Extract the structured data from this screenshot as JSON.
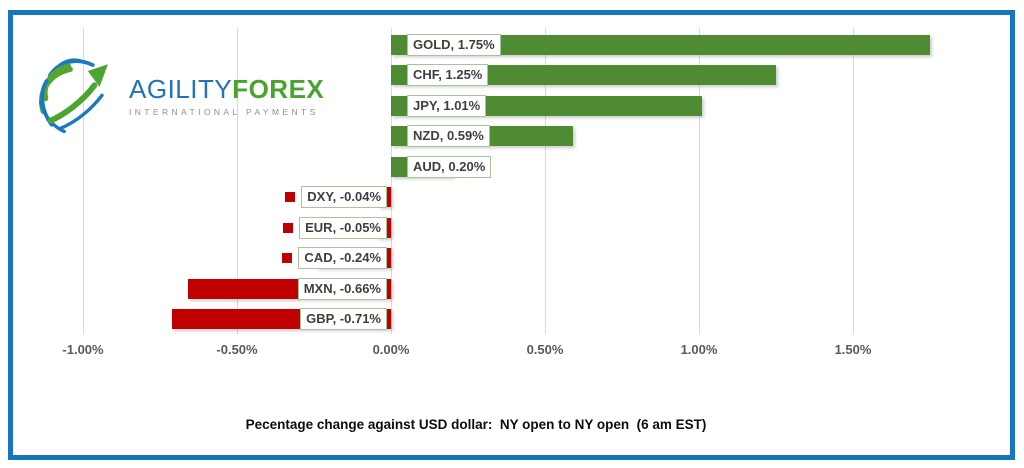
{
  "logo": {
    "brand_part1": "AGILITY",
    "brand_part2": "FOREX",
    "tagline": "INTERNATIONAL PAYMENTS",
    "colors": {
      "blue": "#2173b9",
      "green": "#4aa32e",
      "tagline_gray": "#8f8f8f"
    }
  },
  "frame": {
    "border_color": "#1777bd"
  },
  "chart_data": {
    "type": "bar",
    "orientation": "horizontal",
    "title": "Pecentage change against USD dollar:  NY open to NY open  (6 am EST)",
    "categories": [
      "GOLD",
      "CHF",
      "JPY",
      "NZD",
      "AUD",
      "DXY",
      "EUR",
      "CAD",
      "MXN",
      "GBP"
    ],
    "values": [
      1.75,
      1.25,
      1.01,
      0.59,
      0.2,
      -0.04,
      -0.05,
      -0.24,
      -0.66,
      -0.71
    ],
    "labels": [
      "GOLD, 1.75%",
      "CHF, 1.25%",
      "JPY, 1.01%",
      "NZD, 0.59%",
      "AUD, 0.20%",
      "DXY, -0.04%",
      "EUR, -0.05%",
      "CAD, -0.24%",
      "MXN, -0.66%",
      "GBP, -0.71%"
    ],
    "x_ticks": [
      {
        "value": -1.0,
        "label": "-1.00%"
      },
      {
        "value": -0.5,
        "label": "-0.50%"
      },
      {
        "value": 0.0,
        "label": "0.00%"
      },
      {
        "value": 0.5,
        "label": "0.50%"
      },
      {
        "value": 1.0,
        "label": "1.00%"
      },
      {
        "value": 1.5,
        "label": "1.50%"
      }
    ],
    "xlim": [
      -1.2,
      1.85
    ],
    "grid": "vertical",
    "legend": "none",
    "positive_color": "#4e8b33",
    "negative_color": "#c00000",
    "gridline_color": "#d9d9d9",
    "label_box_border_color": "#a8c49a",
    "axis_text_color": "#595959"
  }
}
